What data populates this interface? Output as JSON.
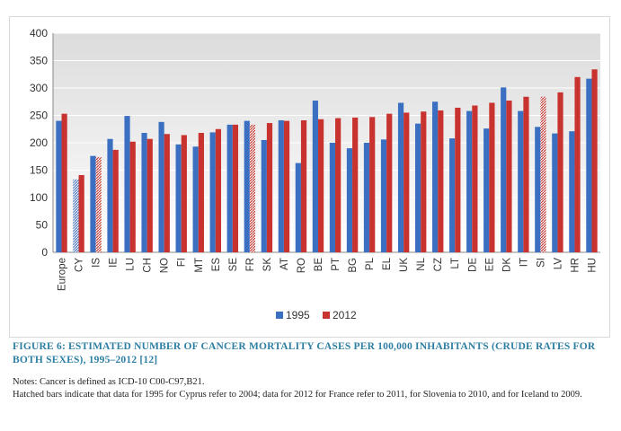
{
  "colors": {
    "s1995": "#3b6fc2",
    "s2012": "#c8332f",
    "plot_bg_top": "#dcdcdc",
    "grid": "#ffffff",
    "caption": "#2e7fa3"
  },
  "chart_data": {
    "type": "bar",
    "title": "",
    "xlabel": "",
    "ylabel": "",
    "ylim": [
      0,
      400
    ],
    "yticks": [
      "0",
      "50",
      "100",
      "150",
      "200",
      "250",
      "300",
      "350",
      "400"
    ],
    "legend_position": "bottom",
    "categories": [
      "Europe",
      "CY",
      "IS",
      "IE",
      "LU",
      "CH",
      "NO",
      "FI",
      "MT",
      "ES",
      "SE",
      "FR",
      "SK",
      "AT",
      "RO",
      "BE",
      "PT",
      "BG",
      "PL",
      "EL",
      "UK",
      "NL",
      "CZ",
      "LT",
      "DE",
      "EE",
      "DK",
      "IT",
      "SI",
      "LV",
      "HR",
      "HU"
    ],
    "series": [
      {
        "name": "1995",
        "color": "#3b6fc2",
        "values": [
          240,
          133,
          176,
          207,
          249,
          218,
          238,
          197,
          193,
          219,
          233,
          240,
          205,
          241,
          163,
          277,
          200,
          190,
          200,
          206,
          273,
          235,
          275,
          208,
          258,
          226,
          301,
          258,
          229,
          217,
          221,
          317
        ],
        "hatched": [
          "CY"
        ]
      },
      {
        "name": "2012",
        "color": "#c8332f",
        "values": [
          253,
          141,
          174,
          187,
          202,
          207,
          216,
          214,
          218,
          225,
          233,
          233,
          236,
          240,
          241,
          243,
          245,
          246,
          247,
          253,
          255,
          257,
          259,
          264,
          268,
          273,
          277,
          284,
          284,
          292,
          320,
          334
        ],
        "hatched": [
          "FR",
          "SI",
          "IS"
        ]
      }
    ]
  },
  "caption": "FIGURE 6: ESTIMATED NUMBER OF CANCER MORTALITY CASES PER 100,000 INHABITANTS (CRUDE RATES FOR BOTH SEXES), 1995–2012 [12]",
  "notes": [
    "Notes: Cancer is defined as ICD-10 C00-C97,B21.",
    "Hatched bars indicate that data for 1995 for Cyprus refer to 2004; data for 2012 for France refer to 2011, for Slovenia to 2010, and for Iceland to 2009."
  ]
}
